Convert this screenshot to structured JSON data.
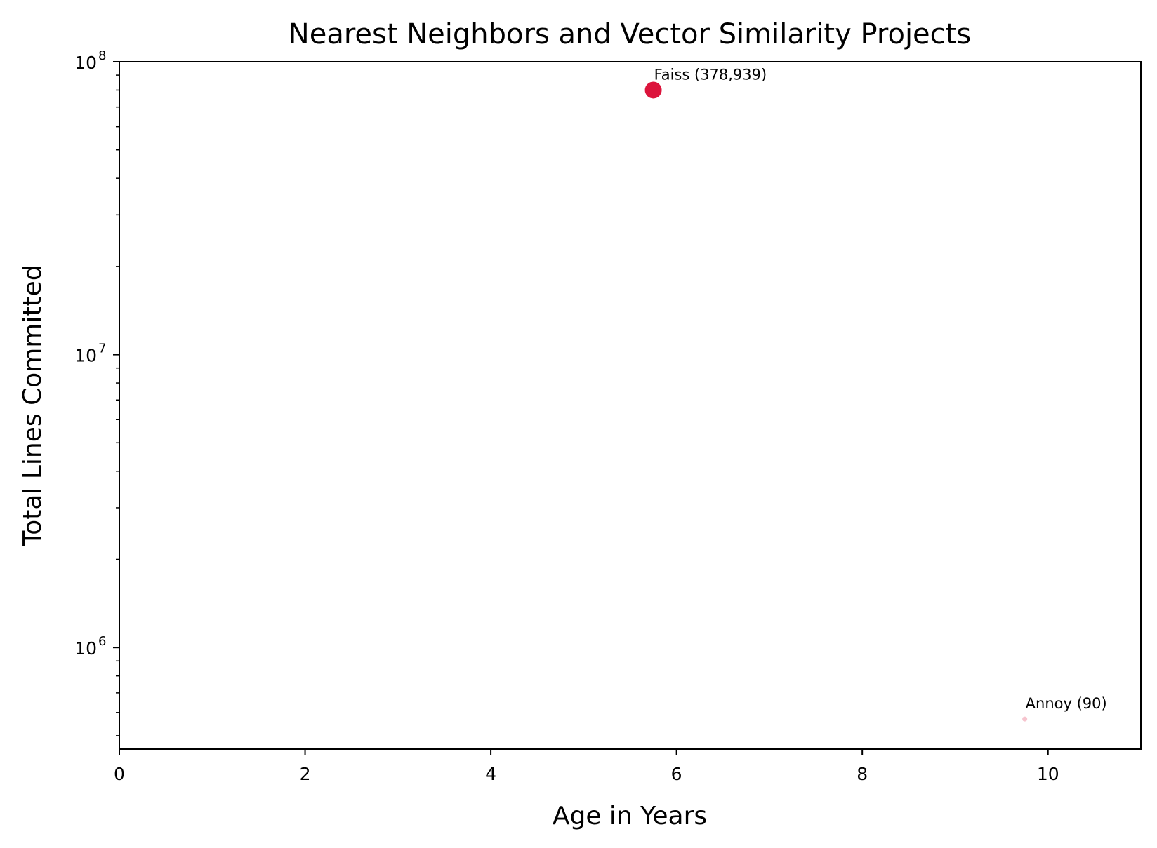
{
  "chart_data": {
    "type": "scatter",
    "title": "Nearest Neighbors and Vector Similarity Projects",
    "xlabel": "Age in Years",
    "ylabel": "Total Lines Committed",
    "xlim": [
      0,
      11
    ],
    "ylim": [
      450000,
      100000000
    ],
    "yscale": "log",
    "grid": false,
    "x_ticks": [
      {
        "value": 0,
        "label": "0"
      },
      {
        "value": 2,
        "label": "2"
      },
      {
        "value": 4,
        "label": "4"
      },
      {
        "value": 6,
        "label": "6"
      },
      {
        "value": 8,
        "label": "8"
      },
      {
        "value": 10,
        "label": "10"
      }
    ],
    "y_ticks": [
      {
        "value": 1000000,
        "base": "10",
        "exp": "6"
      },
      {
        "value": 10000000,
        "base": "10",
        "exp": "7"
      },
      {
        "value": 100000000,
        "base": "10",
        "exp": "8"
      }
    ],
    "points": [
      {
        "label": "Faiss (378,939)",
        "x": 5.75,
        "y": 80000000,
        "color": "#dc143c",
        "opacity": 1.0,
        "size": "large"
      },
      {
        "label": "Annoy (90)",
        "x": 9.75,
        "y": 570000,
        "color": "#dc143c",
        "opacity": 0.25,
        "size": "small"
      }
    ]
  }
}
